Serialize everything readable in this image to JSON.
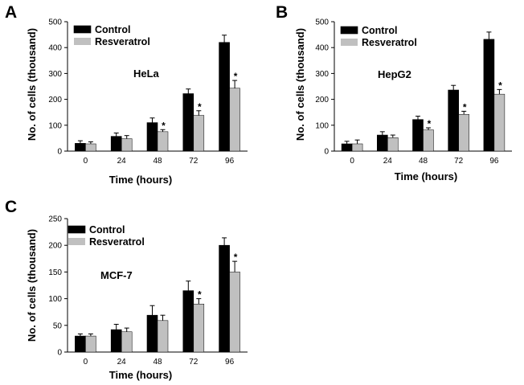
{
  "colors": {
    "control": "#000000",
    "resveratrol": "#c0c0c0",
    "axis": "#000000"
  },
  "chart_data": [
    {
      "type": "bar",
      "panel": "A",
      "cell_line": "HeLa",
      "xlabel": "Time (hours)",
      "ylabel": "No. of cells (thousand)",
      "categories": [
        "0",
        "24",
        "48",
        "72",
        "96"
      ],
      "ylim": [
        0,
        500
      ],
      "yticks": [
        "0",
        "100",
        "200",
        "300",
        "400",
        "500"
      ],
      "legend": "top-left",
      "series": [
        {
          "name": "Control",
          "values": [
            30,
            57,
            110,
            222,
            420
          ],
          "errors": [
            10,
            13,
            18,
            18,
            28
          ]
        },
        {
          "name": "Resveratrol",
          "values": [
            28,
            48,
            75,
            138,
            243
          ],
          "errors": [
            8,
            12,
            8,
            18,
            30
          ]
        }
      ],
      "significance": [
        "",
        "",
        "*",
        "*",
        "*"
      ]
    },
    {
      "type": "bar",
      "panel": "B",
      "cell_line": "HepG2",
      "xlabel": "Time (hours)",
      "ylabel": "No. of cells (thousand)",
      "categories": [
        "0",
        "24",
        "48",
        "72",
        "96"
      ],
      "ylim": [
        0,
        500
      ],
      "yticks": [
        "0",
        "100",
        "200",
        "300",
        "400",
        "500"
      ],
      "legend": "top-left",
      "series": [
        {
          "name": "Control",
          "values": [
            28,
            62,
            122,
            236,
            432
          ],
          "errors": [
            10,
            13,
            13,
            18,
            28
          ]
        },
        {
          "name": "Resveratrol",
          "values": [
            28,
            52,
            82,
            142,
            220
          ],
          "errors": [
            15,
            10,
            8,
            12,
            18
          ]
        }
      ],
      "significance": [
        "",
        "",
        "*",
        "*",
        "*"
      ]
    },
    {
      "type": "bar",
      "panel": "C",
      "cell_line": "MCF-7",
      "xlabel": "Time (hours)",
      "ylabel": "No. of cells (thousand)",
      "categories": [
        "0",
        "24",
        "48",
        "72",
        "96"
      ],
      "ylim": [
        0,
        250
      ],
      "yticks": [
        "0",
        "50",
        "100",
        "150",
        "200",
        "250"
      ],
      "legend": "top-left",
      "series": [
        {
          "name": "Control",
          "values": [
            30,
            42,
            69,
            115,
            200
          ],
          "errors": [
            4,
            10,
            18,
            18,
            14
          ]
        },
        {
          "name": "Resveratrol",
          "values": [
            30,
            38,
            59,
            90,
            150
          ],
          "errors": [
            4,
            7,
            10,
            10,
            20
          ]
        }
      ],
      "significance": [
        "",
        "",
        "",
        "*",
        "*"
      ]
    }
  ]
}
